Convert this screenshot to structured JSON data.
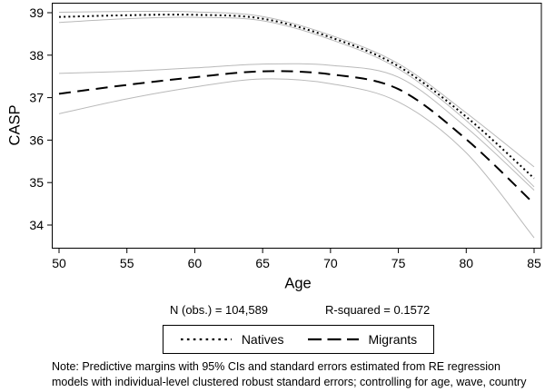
{
  "chart_data": {
    "type": "line",
    "title": "",
    "xlabel": "Age",
    "ylabel": "CASP",
    "x_ticks": [
      50,
      55,
      60,
      65,
      70,
      75,
      80,
      85
    ],
    "y_ticks": [
      34,
      35,
      36,
      37,
      38,
      39
    ],
    "xlim": [
      49.4,
      85.6
    ],
    "ylim": [
      33.45,
      39.25
    ],
    "grid": false,
    "legend_position": "bottom",
    "line_color": "#000000",
    "ci_color": "#b9b9b9",
    "x": [
      50,
      55,
      60,
      65,
      70,
      75,
      80,
      85
    ],
    "series": [
      {
        "name": "Natives",
        "line_style": "dotted",
        "color": "#000000",
        "values": [
          38.9,
          38.94,
          38.95,
          38.86,
          38.42,
          37.74,
          36.55,
          35.1
        ],
        "ci_upper": [
          39.01,
          39.03,
          39.02,
          38.91,
          38.47,
          37.8,
          36.64,
          35.37
        ],
        "ci_lower": [
          38.77,
          38.86,
          38.89,
          38.81,
          38.37,
          37.68,
          36.46,
          34.9
        ]
      },
      {
        "name": "Migrants",
        "line_style": "long-dash",
        "color": "#000000",
        "values": [
          37.09,
          37.3,
          37.48,
          37.62,
          37.55,
          37.2,
          36.02,
          34.5
        ],
        "ci_upper": [
          37.57,
          37.62,
          37.7,
          37.79,
          37.76,
          37.48,
          36.3,
          34.82
        ],
        "ci_lower": [
          36.62,
          36.97,
          37.25,
          37.44,
          37.33,
          36.9,
          35.7,
          33.7
        ]
      }
    ]
  },
  "stats": {
    "n_obs": "N (obs.) = 104,589",
    "r_squared": "R-squared = 0.1572"
  },
  "legend": {
    "items": [
      {
        "label": "Natives",
        "line_style": "dotted"
      },
      {
        "label": "Migrants",
        "line_style": "long-dash"
      }
    ]
  },
  "note": {
    "lines": [
      "Note: Predictive margins with 95% CIs and standard errors estimated from RE regression",
      "models with individual-level clustered robust standard errors; controlling for age, wave, country"
    ]
  }
}
